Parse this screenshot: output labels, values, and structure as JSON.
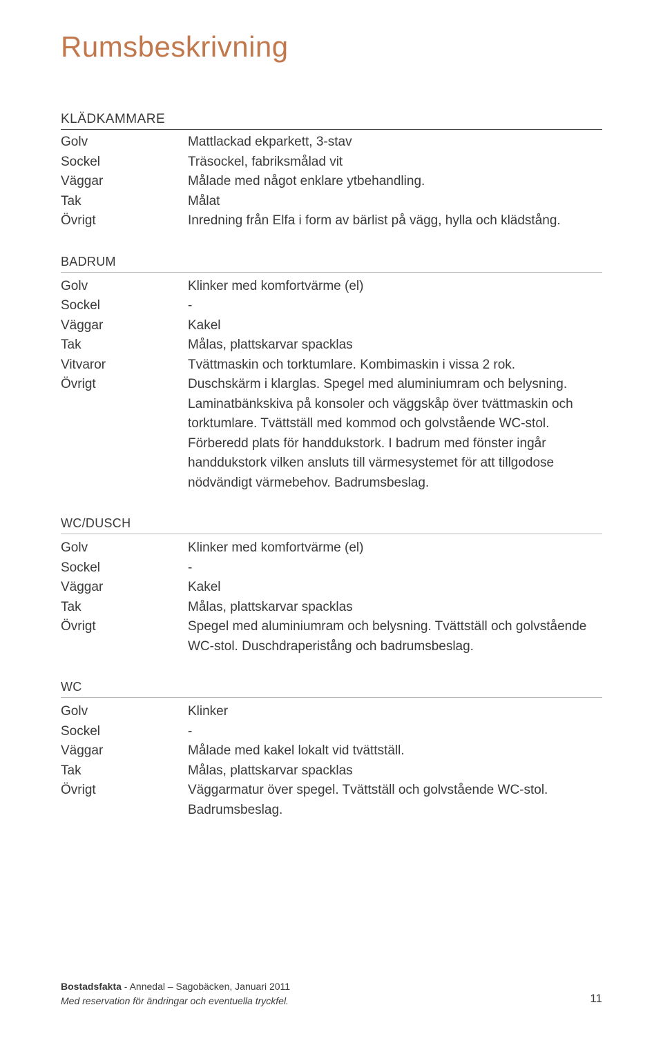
{
  "colors": {
    "title": "#c1784c",
    "text": "#3a3a3a",
    "rule_dark": "#3a3a3a",
    "rule_light": "#b8b8b8",
    "background": "#ffffff"
  },
  "title": "Rumsbeskrivning",
  "sections": [
    {
      "header": "KLÄDKAMMARE",
      "rows": [
        {
          "label": "Golv",
          "value": "Mattlackad ekparkett, 3-stav"
        },
        {
          "label": "Sockel",
          "value": "Träsockel, fabriksmålad vit"
        },
        {
          "label": "Väggar",
          "value": "Målade med något enklare ytbehandling."
        },
        {
          "label": "Tak",
          "value": "Målat"
        },
        {
          "label": "Övrigt",
          "value": "Inredning från Elfa i form av bärlist på vägg, hylla och klädstång."
        }
      ]
    },
    {
      "header": "BADRUM",
      "rows": [
        {
          "label": "Golv",
          "value": "Klinker med komfortvärme (el)"
        },
        {
          "label": "Sockel",
          "value": "-"
        },
        {
          "label": "Väggar",
          "value": "Kakel"
        },
        {
          "label": "Tak",
          "value": "Målas, plattskarvar spacklas"
        },
        {
          "label": "Vitvaror",
          "value": "Tvättmaskin och torktumlare. Kombimaskin i vissa 2 rok."
        },
        {
          "label": "Övrigt",
          "value": "Duschskärm i klarglas. Spegel med aluminiumram och belysning. Laminatbänkskiva på konsoler och väggskåp över tvättmaskin och torktumlare. Tvättställ med kommod och golvstående WC-stol. Förberedd plats för handdukstork. I badrum med fönster ingår handdukstork vilken ansluts till värmesystemet för att tillgodose nödvändigt värmebehov. Badrumsbeslag."
        }
      ]
    },
    {
      "header": "WC/DUSCH",
      "rows": [
        {
          "label": "Golv",
          "value": "Klinker med komfortvärme (el)"
        },
        {
          "label": "Sockel",
          "value": "-"
        },
        {
          "label": "Väggar",
          "value": "Kakel"
        },
        {
          "label": "Tak",
          "value": "Målas, plattskarvar spacklas"
        },
        {
          "label": "Övrigt",
          "value": "Spegel med aluminiumram och belysning. Tvättställ och golvstående WC-stol. Duschdraperistång och badrumsbeslag."
        }
      ]
    },
    {
      "header": "WC",
      "rows": [
        {
          "label": "Golv",
          "value": "Klinker"
        },
        {
          "label": "Sockel",
          "value": "-"
        },
        {
          "label": "Väggar",
          "value": "Målade med kakel lokalt vid tvättställ."
        },
        {
          "label": "Tak",
          "value": "Målas, plattskarvar spacklas"
        },
        {
          "label": "Övrigt",
          "value": "Väggarmatur över spegel. Tvättställ och golvstående WC-stol. Badrumsbeslag."
        }
      ]
    }
  ],
  "footer": {
    "line1_bold": "Bostadsfakta",
    "line1_rest": " - Annedal – Sagobäcken, Januari 2011",
    "line2": "Med reservation för ändringar och eventuella tryckfel.",
    "pagenum": "11"
  }
}
